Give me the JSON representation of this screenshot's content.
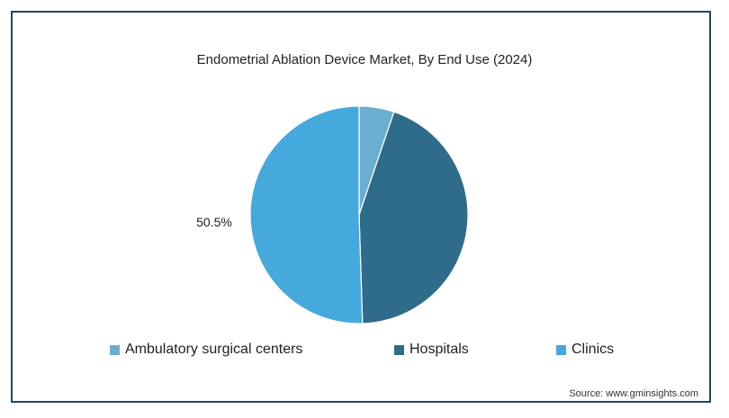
{
  "chart_data": {
    "type": "pie",
    "title": "Endometrial Ablation Device Market, By End Use (2024)",
    "slices": [
      {
        "name": "Ambulatory surgical centers",
        "value": 5.2,
        "color": "#6aaed0"
      },
      {
        "name": "Hospitals",
        "value": 44.3,
        "color": "#2f6b8a"
      },
      {
        "name": "Clinics",
        "value": 50.5,
        "color": "#45a9de"
      }
    ],
    "data_labels": [
      {
        "slice": "Clinics",
        "text": "50.5%"
      }
    ],
    "legend_placement": "bottom",
    "source": "Source: www.gminsights.com"
  }
}
